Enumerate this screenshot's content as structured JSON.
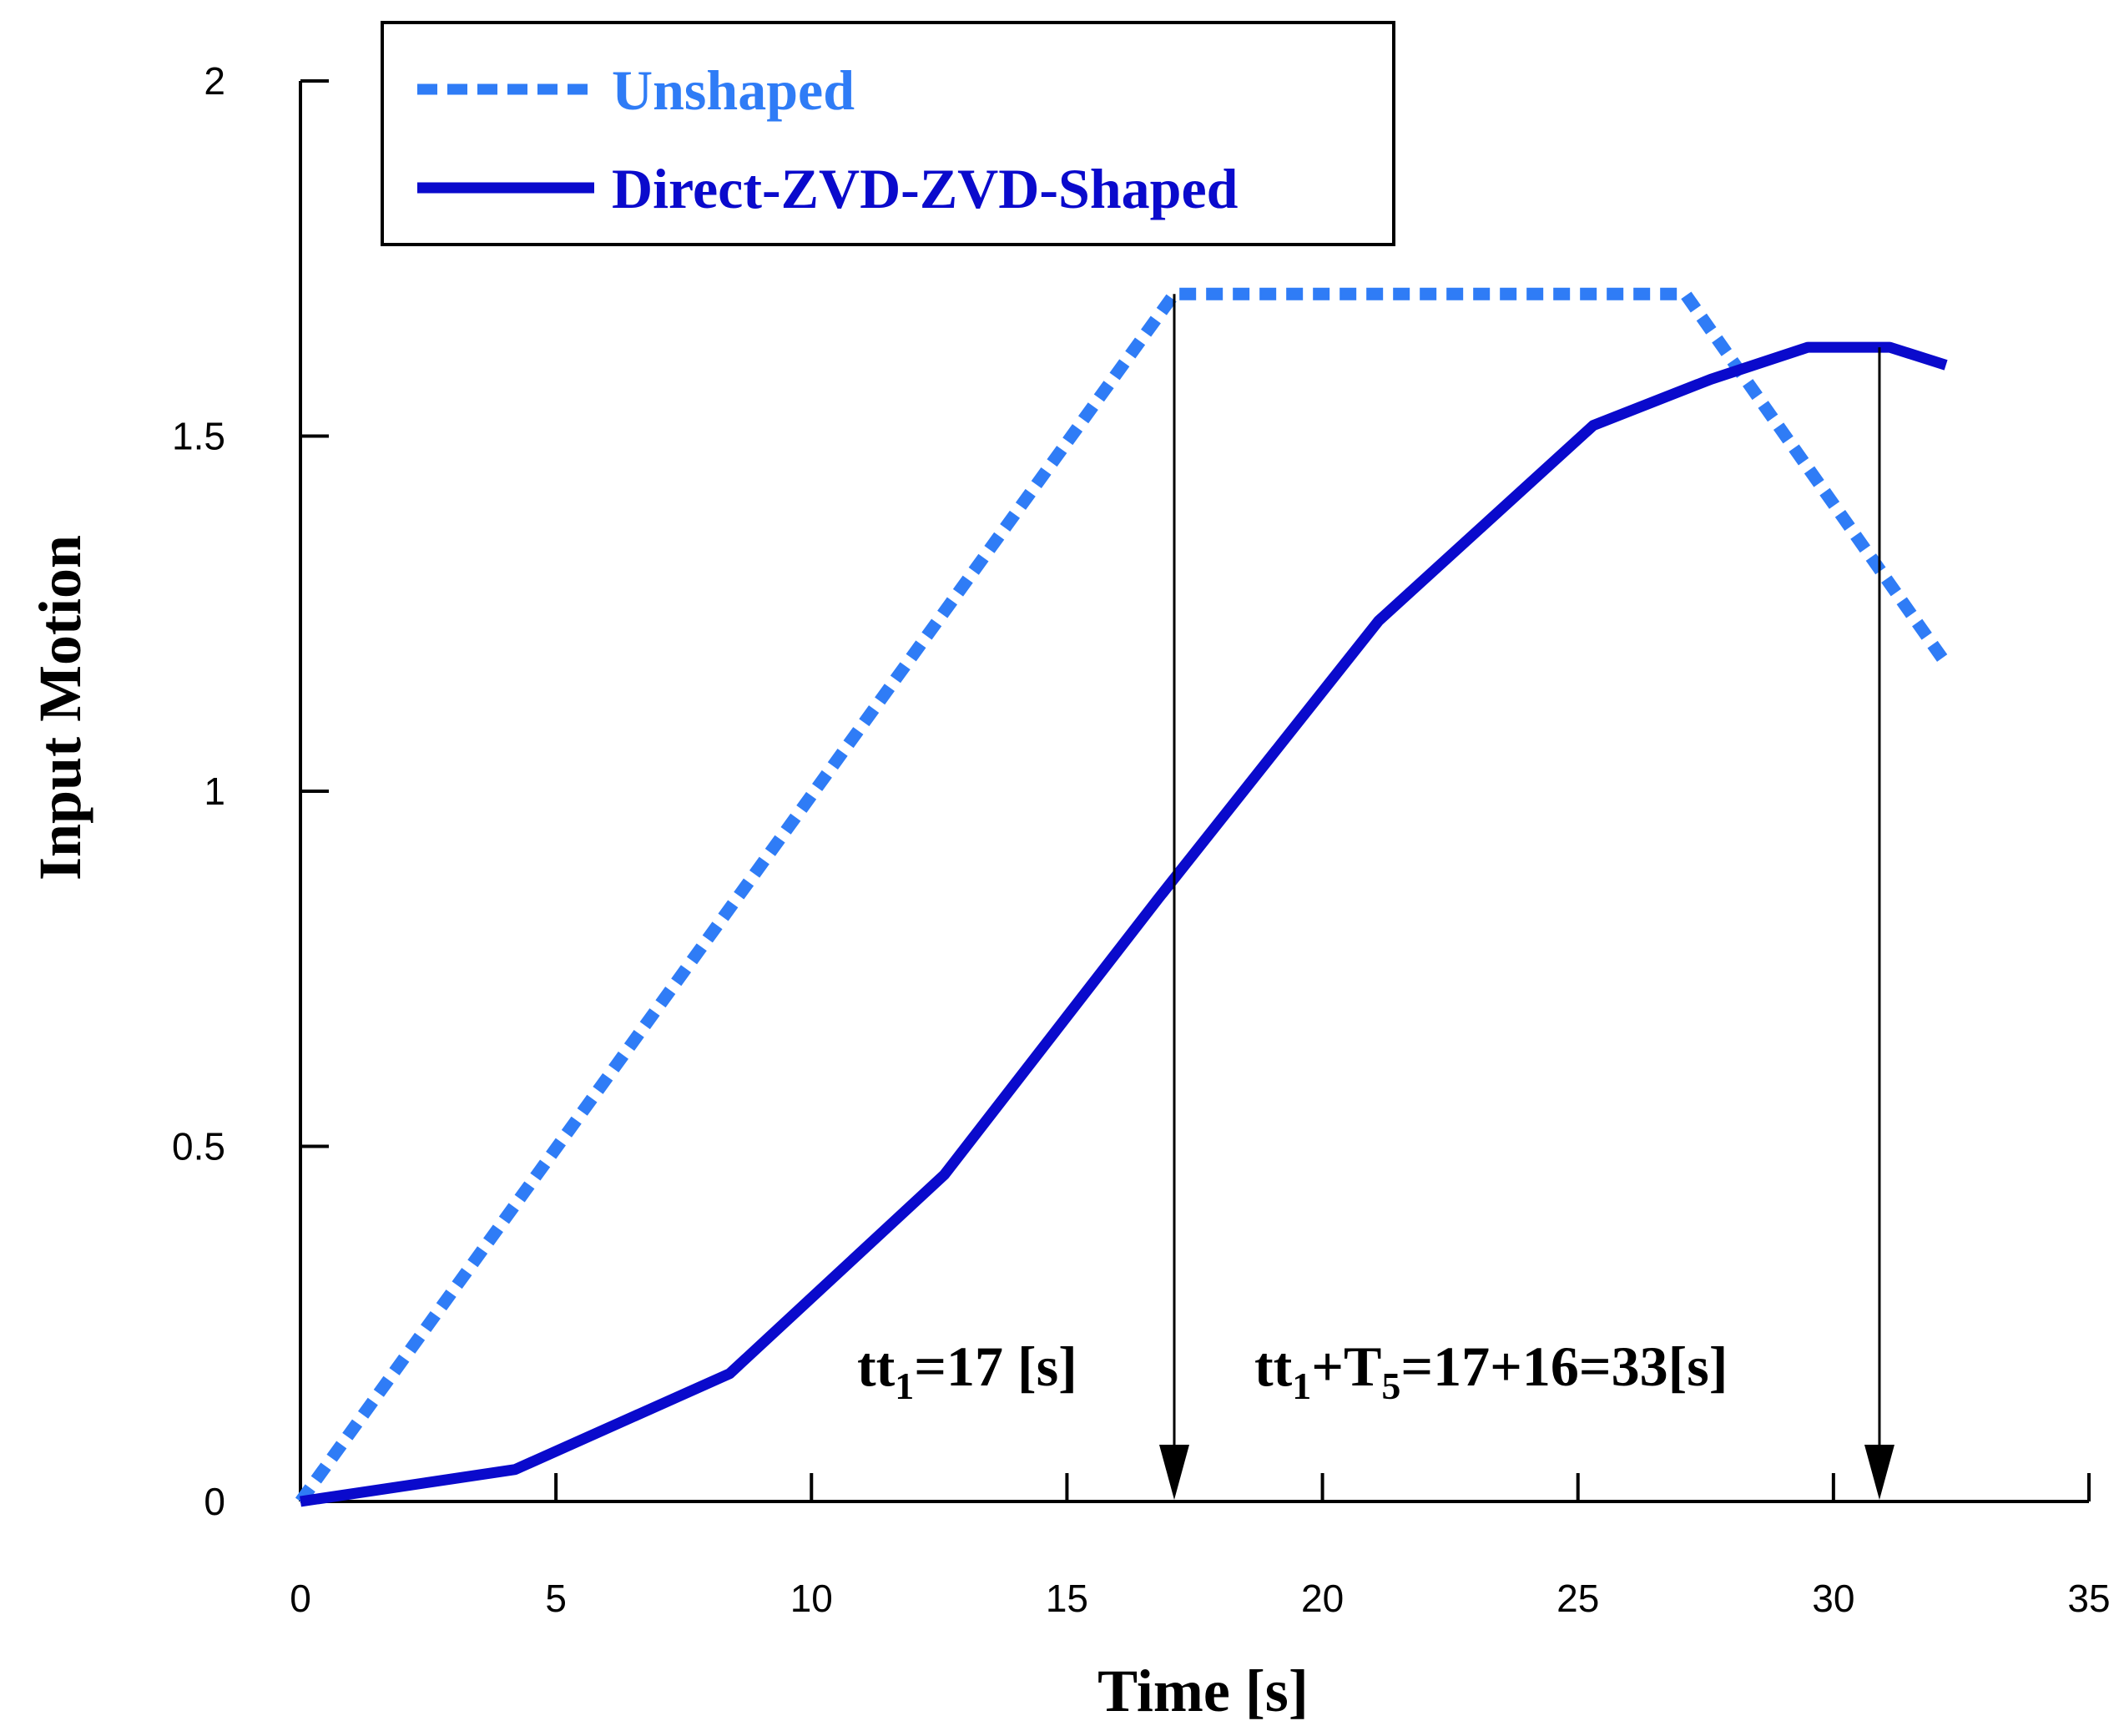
{
  "chart_data": {
    "type": "line",
    "title": "",
    "xlabel": "Time [s]",
    "ylabel": "Input Motion",
    "xlim": [
      0,
      35
    ],
    "ylim": [
      0,
      2
    ],
    "x_ticks": [
      0,
      5,
      10,
      15,
      20,
      25,
      30,
      35
    ],
    "x_tick_labels": [
      "0",
      "5",
      "10",
      "15",
      "20",
      "25",
      "30",
      "35"
    ],
    "y_ticks": [
      0,
      0.5,
      1,
      1.5,
      2
    ],
    "y_tick_labels": [
      "0",
      "0.5",
      "1",
      "1.5",
      "2"
    ],
    "grid": false,
    "legend_position": "top-left",
    "series": [
      {
        "name": "Unshaped",
        "color": "#2f7cf6",
        "style": "dashed",
        "x": [
          0,
          17.1,
          27.1,
          32.2
        ],
        "y": [
          0,
          1.7,
          1.7,
          1.18
        ]
      },
      {
        "name": "Direct-ZVD-ZVD-Shaped",
        "color": "#0a0acc",
        "style": "solid",
        "x": [
          0,
          4.2,
          8.4,
          12.6,
          16.8,
          21.1,
          25.3,
          27.6,
          29.5,
          31.1,
          32.2
        ],
        "y": [
          0,
          0.045,
          0.18,
          0.46,
          0.85,
          1.24,
          1.515,
          1.58,
          1.625,
          1.625,
          1.6
        ]
      }
    ],
    "annotations": [
      {
        "id": "tt1",
        "x": 17.1,
        "y_from": 1.7,
        "y_to": 0,
        "text_main": "tt",
        "text_sub": "1",
        "text_rest": "=17 [s]"
      },
      {
        "id": "tt1-plus-t5",
        "x": 30.9,
        "y_from": 1.625,
        "y_to": 0,
        "text_main": "tt",
        "text_sub": "1",
        "text_mid": "+T",
        "text_sub2": "5",
        "text_rest": "=17+16=33[s]"
      }
    ]
  }
}
